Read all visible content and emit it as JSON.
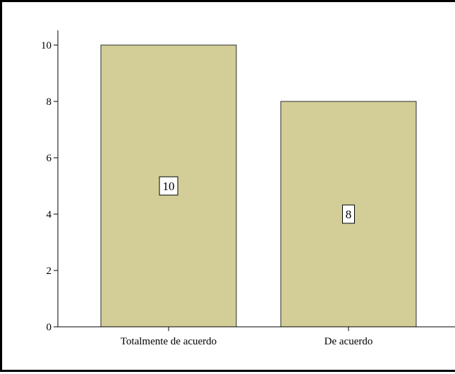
{
  "chart_data": {
    "type": "bar",
    "title": "",
    "xlabel": "",
    "ylabel": "",
    "categories": [
      "Totalmente de acuerdo",
      "De acuerdo"
    ],
    "values": [
      10,
      8
    ],
    "data_labels": [
      "10",
      "8"
    ],
    "ylim": [
      0,
      10
    ],
    "yticks": [
      0,
      2,
      4,
      6,
      8,
      10
    ],
    "ytick_labels": [
      "0",
      "2",
      "4",
      "6",
      "8",
      "10"
    ],
    "grid": false,
    "legend": "none",
    "colors": {
      "bar_fill": "#d3ce97",
      "bar_stroke": "#2b2b2b",
      "axis": "#000000",
      "label_box": "#ffffff"
    }
  }
}
